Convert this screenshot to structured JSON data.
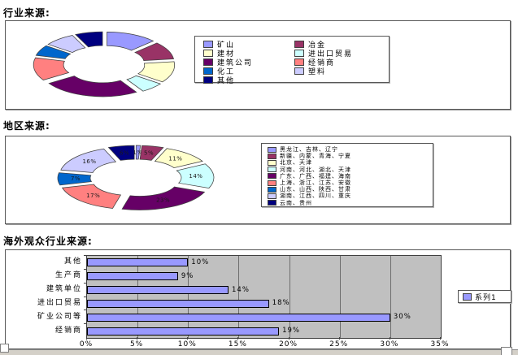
{
  "page_bg": "#ffffff",
  "chart_data": [
    {
      "type": "pie",
      "subtype": "doughnut-exploded",
      "heading": "行业来源:",
      "title": "行业来源",
      "data_labels_shown": false,
      "values_estimated": true,
      "segments": [
        {
          "label": "矿山",
          "value": 13,
          "color": "#9999FF"
        },
        {
          "label": "冶金",
          "value": 10,
          "color": "#993366"
        },
        {
          "label": "建材",
          "value": 12,
          "color": "#FFFFCC"
        },
        {
          "label": "进出口贸易",
          "value": 6,
          "color": "#CCFFFF"
        },
        {
          "label": "建筑公司",
          "value": 25,
          "color": "#660066"
        },
        {
          "label": "经销商",
          "value": 13,
          "color": "#FF8080"
        },
        {
          "label": "化工",
          "value": 6,
          "color": "#0066CC"
        },
        {
          "label": "塑料",
          "value": 8,
          "color": "#CCCCFF"
        },
        {
          "label": "其他",
          "value": 7,
          "color": "#000080"
        }
      ],
      "legend": {
        "position": "right",
        "columns": 2,
        "column1_labels": [
          "矿山",
          "建材",
          "建筑公司",
          "化工",
          "其他"
        ],
        "column2_labels": [
          "冶金",
          "进出口贸易",
          "经销商",
          "塑料"
        ]
      }
    },
    {
      "type": "pie",
      "subtype": "doughnut-exploded",
      "heading": "地区来源:",
      "title": "地区来源",
      "data_labels_shown": true,
      "segments": [
        {
          "label": "黑龙江、吉林、辽宁",
          "value": 1,
          "color": "#9999FF",
          "data_label": "1%"
        },
        {
          "label": "新疆、内蒙、青海、宁夏",
          "value": 5,
          "color": "#993366",
          "data_label": "5%"
        },
        {
          "label": "北京、天津",
          "value": 11,
          "color": "#FFFFCC",
          "data_label": "11%"
        },
        {
          "label": "河南、河北、湖北、天津",
          "value": 14,
          "color": "#CCFFFF",
          "data_label": "14%"
        },
        {
          "label": "广东、广西、福建、海南",
          "value": 23,
          "color": "#660066",
          "data_label": "23%"
        },
        {
          "label": "上海、浙江、江苏、安徽",
          "value": 17,
          "color": "#FF8080",
          "data_label": "17%"
        },
        {
          "label": "山东、山西、陕西、甘肃",
          "value": 7,
          "color": "#0066CC",
          "data_label": "7%"
        },
        {
          "label": "湖南、江西、四川、重庆",
          "value": 16,
          "color": "#CCCCFF",
          "data_label": "16%"
        },
        {
          "label": "云南、贵州",
          "value": 6,
          "color": "#000080",
          "data_label": "6%"
        }
      ],
      "legend": {
        "position": "right",
        "columns": 1
      }
    },
    {
      "type": "bar",
      "orientation": "horizontal",
      "heading": "海外观众行业来源:",
      "title": "海外观众行业来源",
      "categories": [
        "其他",
        "生产商",
        "建筑单位",
        "进出口贸易",
        "矿业公司等",
        "经销商"
      ],
      "values": [
        10,
        9,
        14,
        18,
        30,
        19
      ],
      "data_labels": [
        "10%",
        "9%",
        "14%",
        "18%",
        "30%",
        "19%"
      ],
      "xlim": [
        0,
        35
      ],
      "xtick_labels": [
        "0%",
        "5%",
        "10%",
        "15%",
        "20%",
        "25%",
        "30%",
        "35%"
      ],
      "series_name": "系列1",
      "legend_position": "right",
      "bar_color": "#9999FF",
      "plot_bg": "#C0C0C0",
      "grid": true
    }
  ]
}
